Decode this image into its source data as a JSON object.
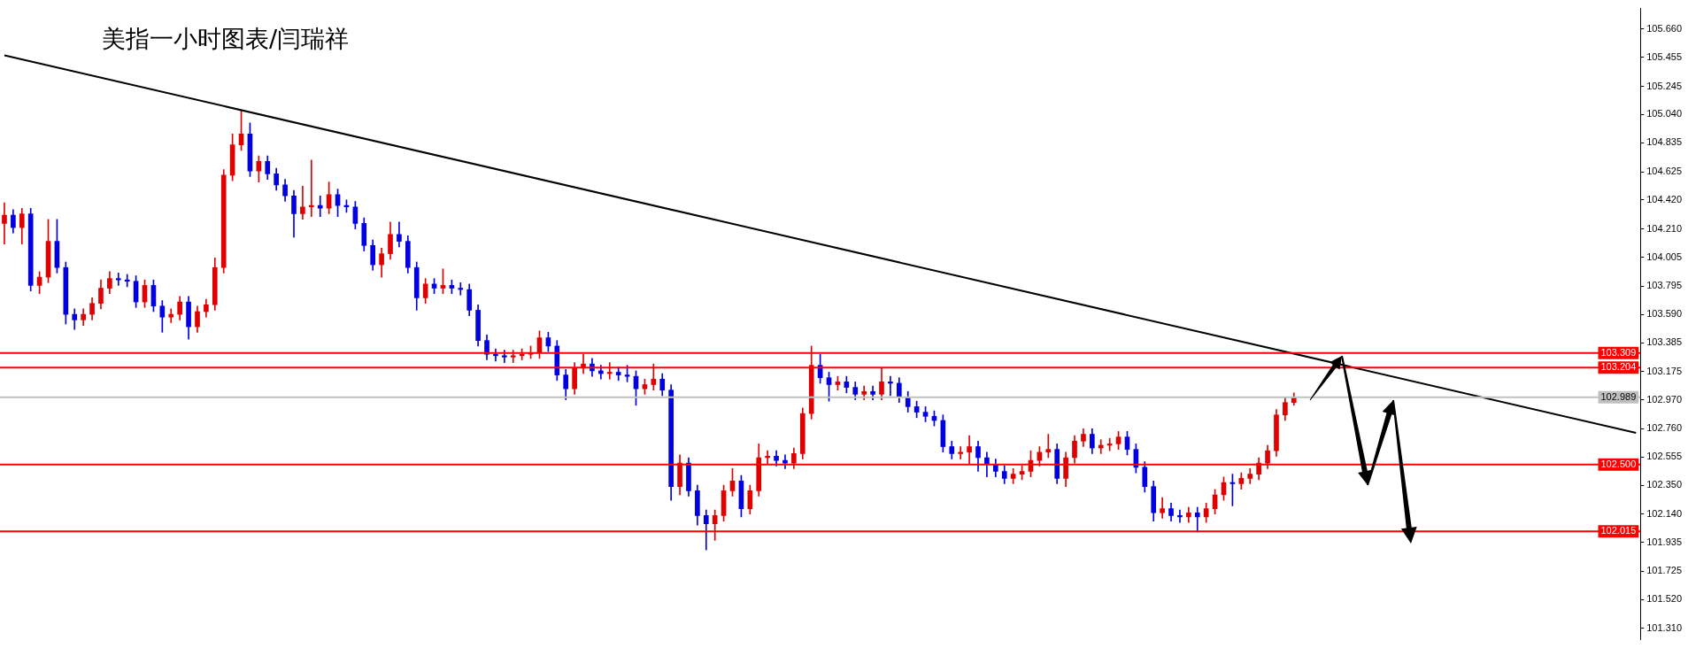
{
  "chart_data": {
    "type": "candlestick",
    "title": "美指一小时图表/闫瑞祥",
    "tick_labels": "y",
    "legend": false,
    "categories": [
      null,
      null,
      null,
      null,
      null,
      null,
      null,
      null,
      null,
      null,
      null,
      null,
      null,
      null,
      null,
      null,
      null,
      null,
      null,
      null,
      null,
      null,
      null,
      null,
      null,
      null,
      null,
      null,
      null,
      null,
      null,
      null,
      null,
      null,
      null,
      null,
      null,
      null,
      null,
      null,
      null,
      null,
      null,
      null,
      null,
      null,
      null,
      null,
      null,
      null,
      null,
      null,
      null,
      null,
      null,
      null,
      null,
      null,
      null,
      null,
      null,
      null,
      null,
      null,
      null,
      null,
      null,
      null,
      null,
      null,
      null,
      null,
      null,
      null,
      null,
      null,
      null,
      null,
      null,
      null,
      null,
      null,
      null,
      null,
      null,
      null,
      null,
      null,
      null,
      null,
      null,
      null,
      null,
      null,
      null,
      null,
      null,
      null,
      null,
      null,
      null,
      null,
      null,
      null,
      null,
      null,
      null,
      null,
      null,
      null,
      null,
      null,
      null,
      null,
      null,
      null,
      null,
      null,
      null,
      null,
      null,
      null,
      null,
      null,
      null,
      null,
      null,
      null,
      null,
      null,
      null,
      null,
      null,
      null,
      null,
      null,
      null,
      null,
      null,
      null,
      null,
      null,
      null,
      null,
      null,
      null,
      null,
      null,
      null,
      null,
      null,
      null,
      null,
      null,
      null,
      null,
      null,
      null,
      null,
      null,
      null,
      null,
      null,
      null,
      null,
      null,
      null,
      null,
      null,
      null,
      null,
      null,
      null,
      null,
      null,
      null,
      null,
      null,
      null,
      null,
      null,
      null,
      null,
      null,
      null,
      null,
      null
    ],
    "ohlc": [
      [
        104.25,
        104.4,
        104.1,
        104.31
      ],
      [
        104.31,
        104.35,
        104.18,
        104.22
      ],
      [
        104.22,
        104.36,
        104.1,
        104.32
      ],
      [
        104.32,
        104.36,
        103.76,
        103.8
      ],
      [
        103.8,
        103.9,
        103.74,
        103.86
      ],
      [
        103.86,
        104.28,
        103.82,
        104.12
      ],
      [
        104.12,
        104.28,
        103.89,
        103.93
      ],
      [
        103.93,
        103.97,
        103.52,
        103.59
      ],
      [
        103.59,
        103.63,
        103.48,
        103.55
      ],
      [
        103.55,
        103.63,
        103.51,
        103.59
      ],
      [
        103.59,
        103.71,
        103.55,
        103.67
      ],
      [
        103.67,
        103.84,
        103.63,
        103.78
      ],
      [
        103.78,
        103.9,
        103.74,
        103.85
      ],
      [
        103.85,
        103.89,
        103.8,
        103.84
      ],
      [
        103.84,
        103.88,
        103.79,
        103.83
      ],
      [
        103.83,
        103.87,
        103.64,
        103.68
      ],
      [
        103.68,
        103.84,
        103.64,
        103.8
      ],
      [
        103.8,
        103.84,
        103.61,
        103.65
      ],
      [
        103.65,
        103.69,
        103.46,
        103.57
      ],
      [
        103.57,
        103.63,
        103.53,
        103.59
      ],
      [
        103.59,
        103.72,
        103.55,
        103.68
      ],
      [
        103.68,
        103.72,
        103.41,
        103.5
      ],
      [
        103.5,
        103.65,
        103.46,
        103.61
      ],
      [
        103.61,
        103.7,
        103.57,
        103.66
      ],
      [
        103.66,
        104.0,
        103.62,
        103.93
      ],
      [
        103.93,
        104.64,
        103.89,
        104.6
      ],
      [
        104.6,
        104.9,
        104.56,
        104.82
      ],
      [
        104.82,
        105.07,
        104.78,
        104.9
      ],
      [
        104.9,
        104.98,
        104.59,
        104.63
      ],
      [
        104.63,
        104.74,
        104.55,
        104.7
      ],
      [
        104.7,
        104.74,
        104.57,
        104.61
      ],
      [
        104.61,
        104.65,
        104.49,
        104.53
      ],
      [
        104.53,
        104.57,
        104.41,
        104.45
      ],
      [
        104.45,
        104.49,
        104.15,
        104.32
      ],
      [
        104.32,
        104.52,
        104.28,
        104.37
      ],
      [
        104.37,
        104.71,
        104.3,
        104.38
      ],
      [
        104.38,
        104.45,
        104.3,
        104.36
      ],
      [
        104.36,
        104.55,
        104.32,
        104.46
      ],
      [
        104.46,
        104.5,
        104.3,
        104.38
      ],
      [
        104.38,
        104.42,
        104.33,
        104.37
      ],
      [
        104.37,
        104.41,
        104.21,
        104.25
      ],
      [
        104.25,
        104.29,
        104.05,
        104.09
      ],
      [
        104.09,
        104.13,
        103.91,
        103.95
      ],
      [
        103.95,
        104.07,
        103.86,
        104.03
      ],
      [
        104.03,
        104.26,
        103.99,
        104.17
      ],
      [
        104.17,
        104.26,
        104.08,
        104.12
      ],
      [
        104.12,
        104.16,
        103.89,
        103.93
      ],
      [
        103.93,
        103.97,
        103.62,
        103.71
      ],
      [
        103.71,
        103.85,
        103.67,
        103.81
      ],
      [
        103.81,
        103.85,
        103.74,
        103.78
      ],
      [
        103.78,
        103.92,
        103.74,
        103.8
      ],
      [
        103.8,
        103.84,
        103.74,
        103.78
      ],
      [
        103.78,
        103.82,
        103.73,
        103.77
      ],
      [
        103.77,
        103.81,
        103.58,
        103.62
      ],
      [
        103.62,
        103.66,
        103.36,
        103.4
      ],
      [
        103.4,
        103.44,
        103.26,
        103.3
      ],
      [
        103.3,
        103.34,
        103.25,
        103.29
      ],
      [
        103.29,
        103.33,
        103.24,
        103.28
      ],
      [
        103.28,
        103.33,
        103.24,
        103.29
      ],
      [
        103.29,
        103.34,
        103.26,
        103.3
      ],
      [
        103.3,
        103.36,
        103.27,
        103.31
      ],
      [
        103.31,
        103.47,
        103.27,
        103.42
      ],
      [
        103.42,
        103.46,
        103.32,
        103.36
      ],
      [
        103.36,
        103.4,
        103.11,
        103.15
      ],
      [
        103.15,
        103.19,
        102.97,
        103.05
      ],
      [
        103.05,
        103.24,
        103.01,
        103.2
      ],
      [
        103.2,
        103.3,
        103.16,
        103.23
      ],
      [
        103.23,
        103.27,
        103.14,
        103.18
      ],
      [
        103.18,
        103.22,
        103.12,
        103.16
      ],
      [
        103.16,
        103.24,
        103.12,
        103.17
      ],
      [
        103.17,
        103.21,
        103.11,
        103.15
      ],
      [
        103.15,
        103.22,
        103.1,
        103.14
      ],
      [
        103.14,
        103.18,
        102.93,
        103.05
      ],
      [
        103.05,
        103.12,
        103.01,
        103.08
      ],
      [
        103.08,
        103.23,
        103.04,
        103.12
      ],
      [
        103.12,
        103.16,
        103.0,
        103.04
      ],
      [
        103.04,
        103.08,
        102.24,
        102.34
      ],
      [
        102.34,
        102.57,
        102.28,
        102.51
      ],
      [
        102.51,
        102.55,
        102.27,
        102.31
      ],
      [
        102.31,
        102.35,
        102.06,
        102.13
      ],
      [
        102.13,
        102.17,
        101.88,
        102.07
      ],
      [
        102.07,
        102.17,
        101.95,
        102.13
      ],
      [
        102.13,
        102.35,
        102.09,
        102.31
      ],
      [
        102.31,
        102.47,
        102.27,
        102.38
      ],
      [
        102.38,
        102.42,
        102.12,
        102.18
      ],
      [
        102.18,
        102.35,
        102.14,
        102.31
      ],
      [
        102.31,
        102.65,
        102.27,
        102.55
      ],
      [
        102.55,
        102.6,
        102.5,
        102.56
      ],
      [
        102.56,
        102.6,
        102.49,
        102.53
      ],
      [
        102.53,
        102.57,
        102.47,
        102.51
      ],
      [
        102.51,
        102.62,
        102.47,
        102.58
      ],
      [
        102.58,
        102.91,
        102.54,
        102.87
      ],
      [
        102.87,
        103.36,
        102.83,
        103.22
      ],
      [
        103.22,
        103.3,
        103.09,
        103.13
      ],
      [
        103.13,
        103.17,
        102.96,
        103.08
      ],
      [
        103.08,
        103.14,
        103.04,
        103.1
      ],
      [
        103.1,
        103.14,
        103.02,
        103.06
      ],
      [
        103.06,
        103.1,
        102.97,
        103.01
      ],
      [
        103.01,
        103.07,
        102.97,
        103.03
      ],
      [
        103.03,
        103.07,
        102.97,
        103.01
      ],
      [
        103.01,
        103.2,
        102.97,
        103.1
      ],
      [
        103.1,
        103.14,
        103.0,
        103.09
      ],
      [
        103.09,
        103.13,
        102.95,
        102.99
      ],
      [
        102.99,
        103.03,
        102.88,
        102.92
      ],
      [
        102.92,
        102.96,
        102.84,
        102.88
      ],
      [
        102.88,
        102.92,
        102.81,
        102.85
      ],
      [
        102.85,
        102.89,
        102.78,
        102.82
      ],
      [
        102.82,
        102.86,
        102.59,
        102.63
      ],
      [
        102.63,
        102.67,
        102.54,
        102.58
      ],
      [
        102.58,
        102.63,
        102.54,
        102.59
      ],
      [
        102.59,
        102.71,
        102.5,
        102.63
      ],
      [
        102.63,
        102.67,
        102.45,
        102.55
      ],
      [
        102.55,
        102.59,
        102.41,
        102.5
      ],
      [
        102.5,
        102.54,
        102.41,
        102.45
      ],
      [
        102.45,
        102.49,
        102.36,
        102.4
      ],
      [
        102.4,
        102.47,
        102.36,
        102.43
      ],
      [
        102.43,
        102.49,
        102.39,
        102.45
      ],
      [
        102.45,
        102.6,
        102.41,
        102.53
      ],
      [
        102.53,
        102.63,
        102.49,
        102.59
      ],
      [
        102.59,
        102.72,
        102.55,
        102.61
      ],
      [
        102.61,
        102.65,
        102.36,
        102.4
      ],
      [
        102.4,
        102.59,
        102.34,
        102.55
      ],
      [
        102.55,
        102.71,
        102.51,
        102.67
      ],
      [
        102.67,
        102.76,
        102.63,
        102.72
      ],
      [
        102.72,
        102.76,
        102.58,
        102.62
      ],
      [
        102.62,
        102.68,
        102.58,
        102.64
      ],
      [
        102.64,
        102.69,
        102.6,
        102.65
      ],
      [
        102.65,
        102.74,
        102.61,
        102.7
      ],
      [
        102.7,
        102.74,
        102.57,
        102.61
      ],
      [
        102.61,
        102.65,
        102.44,
        102.48
      ],
      [
        102.48,
        102.52,
        102.3,
        102.34
      ],
      [
        102.34,
        102.38,
        102.09,
        102.15
      ],
      [
        102.15,
        102.26,
        102.11,
        102.18
      ],
      [
        102.18,
        102.22,
        102.09,
        102.13
      ],
      [
        102.13,
        102.17,
        102.08,
        102.12
      ],
      [
        102.12,
        102.19,
        102.08,
        102.15
      ],
      [
        102.15,
        102.19,
        102.01,
        102.12
      ],
      [
        102.12,
        102.22,
        102.08,
        102.18
      ],
      [
        102.18,
        102.32,
        102.14,
        102.28
      ],
      [
        102.28,
        102.41,
        102.24,
        102.37
      ],
      [
        102.37,
        102.43,
        102.2,
        102.36
      ],
      [
        102.36,
        102.44,
        102.32,
        102.4
      ],
      [
        102.4,
        102.47,
        102.36,
        102.43
      ],
      [
        102.43,
        102.55,
        102.39,
        102.51
      ],
      [
        102.51,
        102.64,
        102.47,
        102.6
      ],
      [
        102.6,
        102.9,
        102.56,
        102.86
      ],
      [
        102.86,
        102.99,
        102.82,
        102.95
      ],
      [
        102.95,
        103.02,
        102.93,
        102.99
      ],
      null,
      null,
      null,
      null,
      null,
      null,
      null,
      null,
      null,
      null,
      null,
      null,
      null,
      null,
      null,
      null,
      null,
      null,
      null,
      null,
      null,
      null,
      null,
      null,
      null,
      null,
      null,
      null,
      null,
      null,
      null,
      null,
      null,
      null,
      null,
      null,
      null,
      null,
      null
    ],
    "colors": [
      "#e00000",
      "#0000e0",
      "#e00000",
      "#0000e0",
      "#e00000",
      "#e00000",
      "#0000e0",
      "#0000e0",
      "#0000e0",
      "#e00000",
      "#e00000",
      "#e00000",
      "#e00000",
      "#0000e0",
      "#0000e0",
      "#0000e0",
      "#e00000",
      "#0000e0",
      "#0000e0",
      "#e00000",
      "#e00000",
      "#0000e0",
      "#e00000",
      "#e00000",
      "#e00000",
      "#e00000",
      "#e00000",
      "#e00000",
      "#0000e0",
      "#e00000",
      "#0000e0",
      "#0000e0",
      "#0000e0",
      "#0000e0",
      "#e00000",
      "#e00000",
      "#0000e0",
      "#e00000",
      "#0000e0",
      "#0000e0",
      "#0000e0",
      "#0000e0",
      "#0000e0",
      "#e00000",
      "#e00000",
      "#0000e0",
      "#0000e0",
      "#0000e0",
      "#e00000",
      "#0000e0",
      "#e00000",
      "#0000e0",
      "#0000e0",
      "#0000e0",
      "#0000e0",
      "#0000e0",
      "#0000e0",
      "#0000e0",
      "#e00000",
      "#e00000",
      "#e00000",
      "#e00000",
      "#0000e0",
      "#0000e0",
      "#0000e0",
      "#e00000",
      "#e00000",
      "#0000e0",
      "#0000e0",
      "#e00000",
      "#0000e0",
      "#0000e0",
      "#0000e0",
      "#e00000",
      "#e00000",
      "#0000e0",
      "#0000e0",
      "#e00000",
      "#0000e0",
      "#0000e0",
      "#0000e0",
      "#e00000",
      "#e00000",
      "#e00000",
      "#0000e0",
      "#e00000",
      "#e00000",
      "#e00000",
      "#0000e0",
      "#0000e0",
      "#e00000",
      "#e00000",
      "#e00000",
      "#0000e0",
      "#0000e0",
      "#e00000",
      "#0000e0",
      "#0000e0",
      "#e00000",
      "#0000e0",
      "#e00000",
      "#0000e0",
      "#0000e0",
      "#0000e0",
      "#0000e0",
      "#0000e0",
      "#0000e0",
      "#0000e0",
      "#0000e0",
      "#e00000",
      "#e00000",
      "#0000e0",
      "#0000e0",
      "#0000e0",
      "#0000e0",
      "#e00000",
      "#e00000",
      "#e00000",
      "#e00000",
      "#e00000",
      "#0000e0",
      "#e00000",
      "#e00000",
      "#e00000",
      "#0000e0",
      "#e00000",
      "#e00000",
      "#e00000",
      "#0000e0",
      "#0000e0",
      "#0000e0",
      "#0000e0",
      "#e00000",
      "#0000e0",
      "#0000e0",
      "#e00000",
      "#0000e0",
      "#e00000",
      "#e00000",
      "#e00000",
      "#0000e0",
      "#e00000",
      "#e00000",
      "#e00000",
      "#e00000",
      "#e00000",
      "#e00000",
      "#e00000",
      null,
      null,
      null,
      null,
      null,
      null,
      null,
      null,
      null,
      null,
      null,
      null,
      null,
      null,
      null,
      null,
      null,
      null,
      null,
      null,
      null,
      null,
      null,
      null,
      null,
      null,
      null,
      null,
      null,
      null,
      null,
      null,
      null,
      null,
      null,
      null,
      null,
      null,
      null
    ],
    "series": [
      {
        "type": "line",
        "color": "#000000",
        "values": [
          105.47,
          null,
          null,
          null,
          null,
          null,
          null,
          null,
          null,
          null,
          null,
          null,
          null,
          null,
          null,
          null,
          null,
          null,
          null,
          null,
          null,
          null,
          null,
          null,
          null,
          null,
          null,
          null,
          null,
          null,
          null,
          null,
          null,
          null,
          null,
          null,
          null,
          null,
          null,
          null,
          null,
          null,
          null,
          null,
          null,
          null,
          null,
          null,
          null,
          null,
          null,
          null,
          null,
          null,
          null,
          null,
          null,
          null,
          null,
          null,
          null,
          null,
          null,
          null,
          null,
          null,
          null,
          null,
          null,
          null,
          null,
          null,
          null,
          null,
          null,
          null,
          null,
          null,
          null,
          null,
          null,
          null,
          null,
          null,
          null,
          null,
          null,
          null,
          null,
          null,
          null,
          null,
          null,
          null,
          null,
          null,
          null,
          null,
          null,
          null,
          null,
          null,
          null,
          null,
          null,
          null,
          null,
          null,
          null,
          null,
          null,
          null,
          null,
          null,
          null,
          null,
          null,
          null,
          null,
          null,
          null,
          null,
          null,
          null,
          null,
          null,
          null,
          null,
          null,
          null,
          null,
          null,
          null,
          null,
          null,
          null,
          null,
          null,
          null,
          null,
          null,
          null,
          null,
          null,
          null,
          null,
          null,
          null,
          null,
          null,
          null,
          null,
          null,
          null,
          null,
          null,
          null,
          null,
          null,
          null,
          null,
          null,
          null,
          null,
          null,
          null,
          null,
          null,
          null,
          null,
          null,
          null,
          null,
          null,
          null,
          null,
          null,
          null,
          null,
          null,
          null,
          null,
          null,
          null,
          null,
          null,
          102.73
        ]
      }
    ],
    "ylim": [
      101.23,
      105.81
    ],
    "yticks": [
      {
        "value": 105.66,
        "label": "105.660"
      },
      {
        "value": 105.455,
        "label": "105.455"
      },
      {
        "value": 105.245,
        "label": "105.245"
      },
      {
        "value": 105.04,
        "label": "105.040"
      },
      {
        "value": 104.835,
        "label": "104.835"
      },
      {
        "value": 104.625,
        "label": "104.625"
      },
      {
        "value": 104.42,
        "label": "104.420"
      },
      {
        "value": 104.21,
        "label": "104.210"
      },
      {
        "value": 104.005,
        "label": "104.005"
      },
      {
        "value": 103.795,
        "label": "103.795"
      },
      {
        "value": 103.59,
        "label": "103.590"
      },
      {
        "value": 103.385,
        "label": "103.385"
      },
      {
        "value": 103.175,
        "label": "103.175"
      },
      {
        "value": 102.97,
        "label": "102.970"
      },
      {
        "value": 102.76,
        "label": "102.760"
      },
      {
        "value": 102.555,
        "label": "102.555"
      },
      {
        "value": 102.35,
        "label": "102.350"
      },
      {
        "value": 102.14,
        "label": "102.140"
      },
      {
        "value": 101.935,
        "label": "101.935"
      },
      {
        "value": 101.725,
        "label": "101.725"
      },
      {
        "value": 101.52,
        "label": "101.520"
      },
      {
        "value": 101.31,
        "label": "101.310"
      }
    ],
    "ref_lines": [
      {
        "axis": "y",
        "value": 103.309,
        "label": "103.309",
        "color": "#ff0000"
      },
      {
        "axis": "y",
        "value": 103.204,
        "label": "103.204",
        "color": "#ff0000"
      },
      {
        "axis": "y",
        "value": 102.989,
        "label": "102.989",
        "color": "#c0c0c0"
      },
      {
        "axis": "y",
        "value": 102.5,
        "label": "102.500",
        "color": "#ff0000"
      },
      {
        "axis": "y",
        "value": 102.015,
        "label": "102.015",
        "color": "#ff0000"
      }
    ]
  }
}
